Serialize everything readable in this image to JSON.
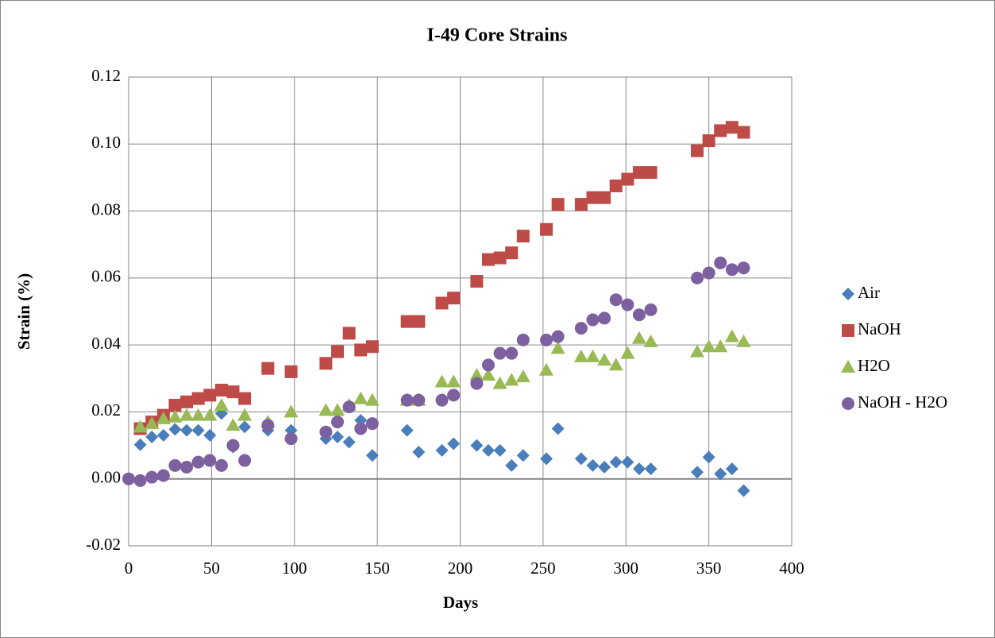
{
  "chart_data": {
    "type": "scatter",
    "title": "I-49 Core Strains",
    "x_label": "Days",
    "y_label": "Strain (%)",
    "xlim": [
      0,
      400
    ],
    "xticks": [
      0,
      50,
      100,
      150,
      200,
      250,
      300,
      350,
      400
    ],
    "ylim": [
      -0.02,
      0.12
    ],
    "yticks": [
      {
        "value": -0.02,
        "label": "-0.02"
      },
      {
        "value": 0,
        "label": "0.00"
      },
      {
        "value": 0.02,
        "label": "0.02"
      },
      {
        "value": 0.04,
        "label": "0.04"
      },
      {
        "value": 0.06,
        "label": "0.06"
      },
      {
        "value": 0.08,
        "label": "0.08"
      },
      {
        "value": 0.1,
        "label": "0.10"
      },
      {
        "value": 0.12,
        "label": "0.12"
      }
    ],
    "grid": true,
    "legend": "right",
    "series": [
      {
        "name": "Air",
        "color": "#4a7ebb",
        "marker": "diamond",
        "x": [
          7,
          14,
          21,
          28,
          35,
          42,
          49,
          56,
          63,
          70,
          84,
          98,
          119,
          126,
          133,
          140,
          147,
          168,
          175,
          189,
          196,
          210,
          217,
          224,
          231,
          238,
          252,
          259,
          273,
          280,
          287,
          294,
          301,
          308,
          315,
          343,
          350,
          357,
          364,
          371
        ],
        "values": [
          0.0102,
          0.0125,
          0.013,
          0.0148,
          0.0145,
          0.0145,
          0.013,
          0.0195,
          0.0095,
          0.0155,
          0.0145,
          0.0145,
          0.012,
          0.0125,
          0.011,
          0.0175,
          0.007,
          0.0145,
          0.008,
          0.0085,
          0.0105,
          0.01,
          0.0085,
          0.0085,
          0.004,
          0.007,
          0.006,
          0.015,
          0.006,
          0.004,
          0.0035,
          0.005,
          0.005,
          0.003,
          0.003,
          0.002,
          0.0065,
          0.0015,
          0.003,
          -0.0035
        ]
      },
      {
        "name": "NaOH",
        "color": "#be4b48",
        "marker": "square",
        "x": [
          7,
          14,
          21,
          28,
          35,
          42,
          49,
          56,
          63,
          70,
          84,
          98,
          119,
          126,
          133,
          140,
          147,
          168,
          175,
          189,
          196,
          210,
          217,
          224,
          231,
          238,
          252,
          259,
          273,
          280,
          287,
          294,
          301,
          308,
          315,
          343,
          350,
          357,
          364,
          371
        ],
        "values": [
          0.015,
          0.017,
          0.019,
          0.022,
          0.023,
          0.024,
          0.025,
          0.0265,
          0.026,
          0.024,
          0.033,
          0.032,
          0.0345,
          0.038,
          0.0435,
          0.0385,
          0.0395,
          0.047,
          0.047,
          0.0525,
          0.054,
          0.059,
          0.0655,
          0.066,
          0.0675,
          0.0725,
          0.0745,
          0.082,
          0.082,
          0.084,
          0.084,
          0.0875,
          0.0895,
          0.0915,
          0.0915,
          0.098,
          0.101,
          0.104,
          0.105,
          0.1035
        ]
      },
      {
        "name": "H2O",
        "color": "#98b954",
        "marker": "triangle",
        "x": [
          7,
          14,
          21,
          28,
          35,
          42,
          49,
          56,
          63,
          70,
          84,
          98,
          119,
          126,
          133,
          140,
          147,
          168,
          175,
          189,
          196,
          210,
          217,
          224,
          231,
          238,
          252,
          259,
          273,
          280,
          287,
          294,
          301,
          308,
          315,
          343,
          350,
          357,
          364,
          371
        ],
        "values": [
          0.0155,
          0.0165,
          0.018,
          0.0185,
          0.019,
          0.019,
          0.019,
          0.022,
          0.016,
          0.019,
          0.017,
          0.02,
          0.0205,
          0.0205,
          0.022,
          0.024,
          0.0235,
          0.0235,
          0.0235,
          0.029,
          0.029,
          0.031,
          0.031,
          0.0285,
          0.0295,
          0.0305,
          0.0325,
          0.039,
          0.0365,
          0.0365,
          0.0355,
          0.034,
          0.0375,
          0.042,
          0.041,
          0.038,
          0.0395,
          0.0395,
          0.0425,
          0.041
        ]
      },
      {
        "name": "NaOH - H2O",
        "color": "#7d60a0",
        "marker": "circle",
        "x": [
          0,
          7,
          14,
          21,
          28,
          35,
          42,
          49,
          56,
          63,
          70,
          84,
          98,
          119,
          126,
          133,
          140,
          147,
          168,
          175,
          189,
          196,
          210,
          217,
          224,
          231,
          238,
          252,
          259,
          273,
          280,
          287,
          294,
          301,
          308,
          315,
          343,
          350,
          357,
          364,
          371
        ],
        "values": [
          0,
          -0.0005,
          0.0005,
          0.001,
          0.004,
          0.0035,
          0.005,
          0.0055,
          0.004,
          0.01,
          0.0055,
          0.016,
          0.012,
          0.014,
          0.017,
          0.0215,
          0.015,
          0.0165,
          0.0235,
          0.0235,
          0.0235,
          0.025,
          0.0285,
          0.034,
          0.0375,
          0.0375,
          0.0415,
          0.0415,
          0.0425,
          0.045,
          0.0475,
          0.048,
          0.0535,
          0.052,
          0.049,
          0.0505,
          0.06,
          0.0615,
          0.0645,
          0.0625,
          0.063
        ]
      }
    ]
  }
}
